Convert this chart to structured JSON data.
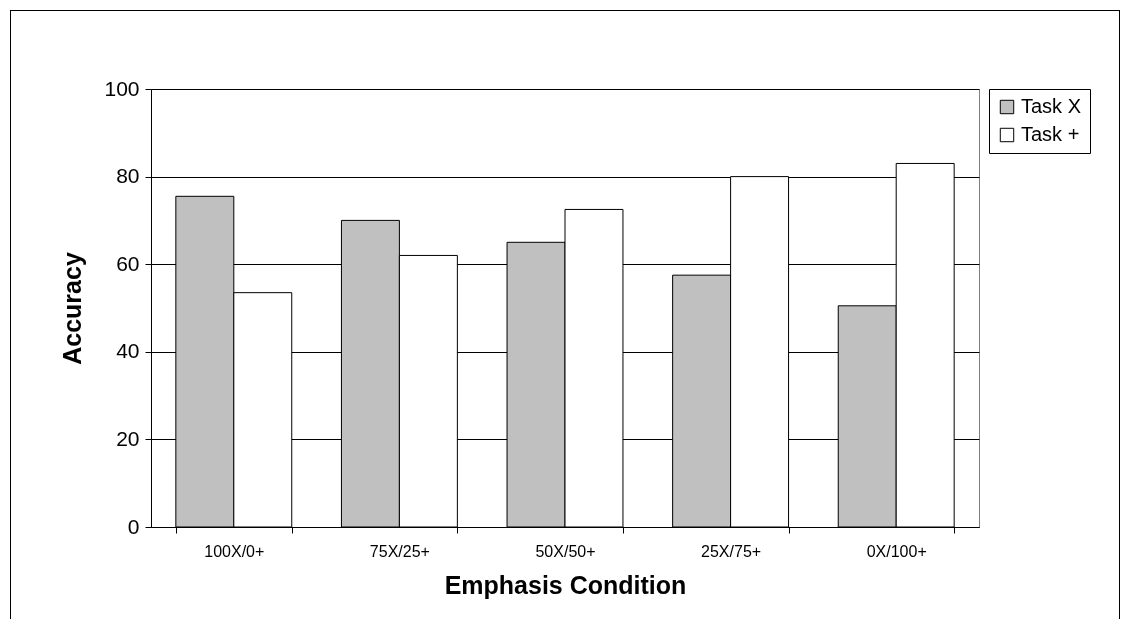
{
  "chart_data": {
    "type": "bar",
    "xlabel": "Emphasis Condition",
    "ylabel": "Accuracy",
    "categories": [
      "100X/0+",
      "75X/25+",
      "50X/50+",
      "25X/75+",
      "0X/100+"
    ],
    "series": [
      {
        "name": "Task X",
        "color": "#c0c0c0",
        "values": [
          75.5,
          70,
          65,
          57.5,
          50.5
        ]
      },
      {
        "name": "Task +",
        "color": "#ffffff",
        "values": [
          53.5,
          62,
          72.5,
          80,
          83
        ]
      }
    ],
    "ylim": [
      0,
      100
    ],
    "yticks": [
      0,
      20,
      40,
      60,
      80,
      100
    ],
    "grid": "y",
    "legend": "right"
  }
}
